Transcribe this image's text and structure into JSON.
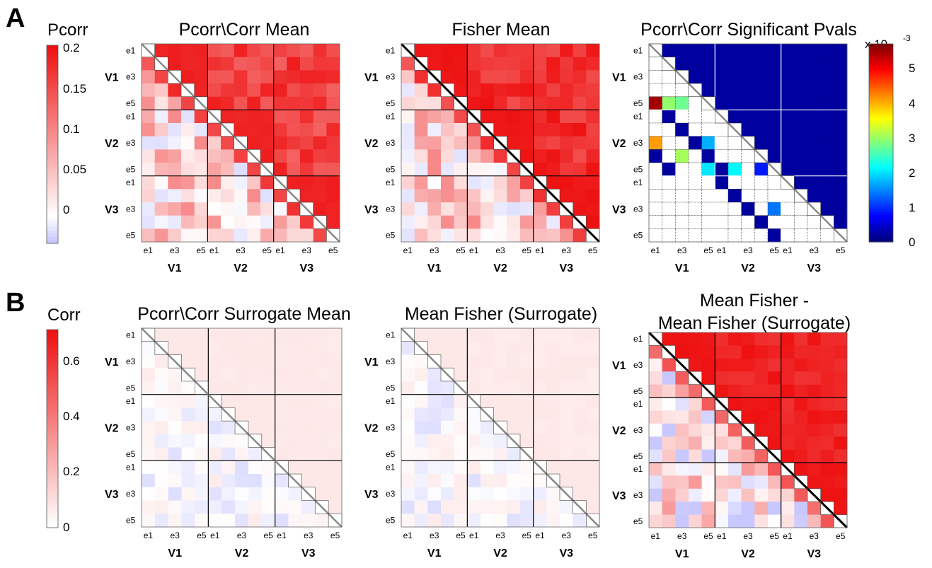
{
  "panels": [
    {
      "letter": "A"
    },
    {
      "letter": "B"
    }
  ],
  "colorbars": [
    {
      "title": "Pcorr",
      "ticks": [
        "0.2",
        "0.15",
        "0.1",
        "0.05",
        "0"
      ],
      "tick_values": [
        0.2,
        0.15,
        0.1,
        0.05,
        0
      ],
      "range": [
        -0.03,
        0.2
      ],
      "scheme": "diverging"
    },
    {
      "title": "Corr",
      "ticks": [
        "0.6",
        "0.4",
        "0.2",
        "0"
      ],
      "tick_values": [
        0.6,
        0.4,
        0.2,
        0
      ],
      "range": [
        0,
        0.7
      ],
      "scheme": "sequential"
    },
    {
      "title": "",
      "exponent": "x 10",
      "exponent_power": "-3",
      "ticks": [
        "5",
        "4",
        "3",
        "2",
        "1",
        "0"
      ],
      "tick_values": [
        5,
        4,
        3,
        2,
        1,
        0
      ],
      "range": [
        0,
        5.4
      ],
      "scheme": "jet"
    }
  ],
  "axis_labels": {
    "electrodes": [
      "e1",
      "e3",
      "e5"
    ],
    "groups": [
      "V1",
      "V2",
      "V3"
    ]
  },
  "chart_data": [
    {
      "type": "heatmap",
      "title_lines": [
        "Pcorr\\Corr Mean"
      ],
      "rows": 15,
      "cols": 15,
      "diagonal": "gray",
      "lower_range": [
        -0.03,
        0.1
      ],
      "upper_range": [
        0.1,
        0.19
      ]
    },
    {
      "type": "heatmap",
      "title_lines": [
        "Fisher Mean"
      ],
      "rows": 15,
      "cols": 15,
      "diagonal": "black",
      "lower_range": [
        -0.03,
        0.1
      ],
      "upper_range": [
        0.12,
        0.2
      ]
    },
    {
      "type": "heatmap",
      "title_lines": [
        "Pcorr\\Corr Significant Pvals"
      ],
      "rows": 15,
      "cols": 15,
      "diagonal": "gray",
      "units": "x 10^-3",
      "significant_values": [
        {
          "row": 4,
          "col": 0,
          "value": 5.2
        },
        {
          "row": 4,
          "col": 1,
          "value": 2.8
        },
        {
          "row": 4,
          "col": 2,
          "value": 2.6
        },
        {
          "row": 7,
          "col": 0,
          "value": 3.9
        },
        {
          "row": 7,
          "col": 4,
          "value": 1.6
        },
        {
          "row": 8,
          "col": 2,
          "value": 2.9
        },
        {
          "row": 9,
          "col": 4,
          "value": 1.9
        },
        {
          "row": 9,
          "col": 6,
          "value": 2.0
        },
        {
          "row": 9,
          "col": 8,
          "value": 0.8
        },
        {
          "row": 12,
          "col": 9,
          "value": 1.3
        }
      ]
    },
    {
      "type": "heatmap",
      "title_lines": [
        "Pcorr\\Corr Surrogate Mean"
      ],
      "rows": 15,
      "cols": 15,
      "diagonal": "gray",
      "lower_range": [
        -0.05,
        0.05
      ],
      "upper_range": [
        0.05,
        0.06
      ]
    },
    {
      "type": "heatmap",
      "title_lines": [
        "Mean Fisher (Surrogate)"
      ],
      "rows": 15,
      "cols": 15,
      "diagonal": "gray",
      "lower_range": [
        -0.05,
        0.05
      ],
      "upper_range": [
        0.04,
        0.06
      ]
    },
    {
      "type": "heatmap",
      "title_lines": [
        "Mean Fisher -",
        "Mean Fisher (Surrogate)"
      ],
      "rows": 15,
      "cols": 15,
      "diagonal": "black",
      "lower_range": [
        -0.1,
        0.3
      ],
      "upper_range": [
        0.55,
        0.7
      ]
    }
  ],
  "colors": {
    "red_max": "#ee1111",
    "blue_min": "#c8c8ff",
    "jet_dark": "#00008f",
    "gray_diag": "#888888"
  }
}
